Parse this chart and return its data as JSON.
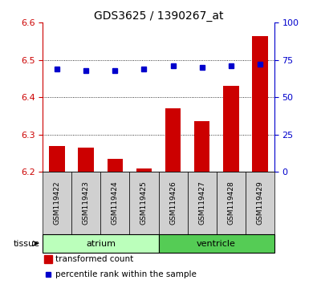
{
  "title": "GDS3625 / 1390267_at",
  "samples": [
    "GSM119422",
    "GSM119423",
    "GSM119424",
    "GSM119425",
    "GSM119426",
    "GSM119427",
    "GSM119428",
    "GSM119429"
  ],
  "bar_values": [
    6.27,
    6.265,
    6.235,
    6.21,
    6.37,
    6.335,
    6.43,
    6.565
  ],
  "dot_values": [
    69,
    68,
    68,
    69,
    71,
    70,
    71,
    72
  ],
  "ylim_left": [
    6.2,
    6.6
  ],
  "ylim_right": [
    0,
    100
  ],
  "yticks_left": [
    6.2,
    6.3,
    6.4,
    6.5,
    6.6
  ],
  "yticks_right": [
    0,
    25,
    50,
    75,
    100
  ],
  "bar_color": "#cc0000",
  "dot_color": "#0000cc",
  "tissue_groups": [
    {
      "label": "atrium",
      "start": 0,
      "end": 3,
      "color": "#bbffbb"
    },
    {
      "label": "ventricle",
      "start": 4,
      "end": 7,
      "color": "#55cc55"
    }
  ],
  "tissue_label": "tissue",
  "legend_bar_label": "transformed count",
  "legend_dot_label": "percentile rank within the sample",
  "ylabel_right_color": "#0000cc",
  "background_color": "#ffffff",
  "tick_label_color_left": "#cc0000",
  "tick_label_color_right": "#0000cc",
  "xticklabel_bg": "#cccccc",
  "sample_box_color": "#d0d0d0",
  "border_color": "#000000"
}
